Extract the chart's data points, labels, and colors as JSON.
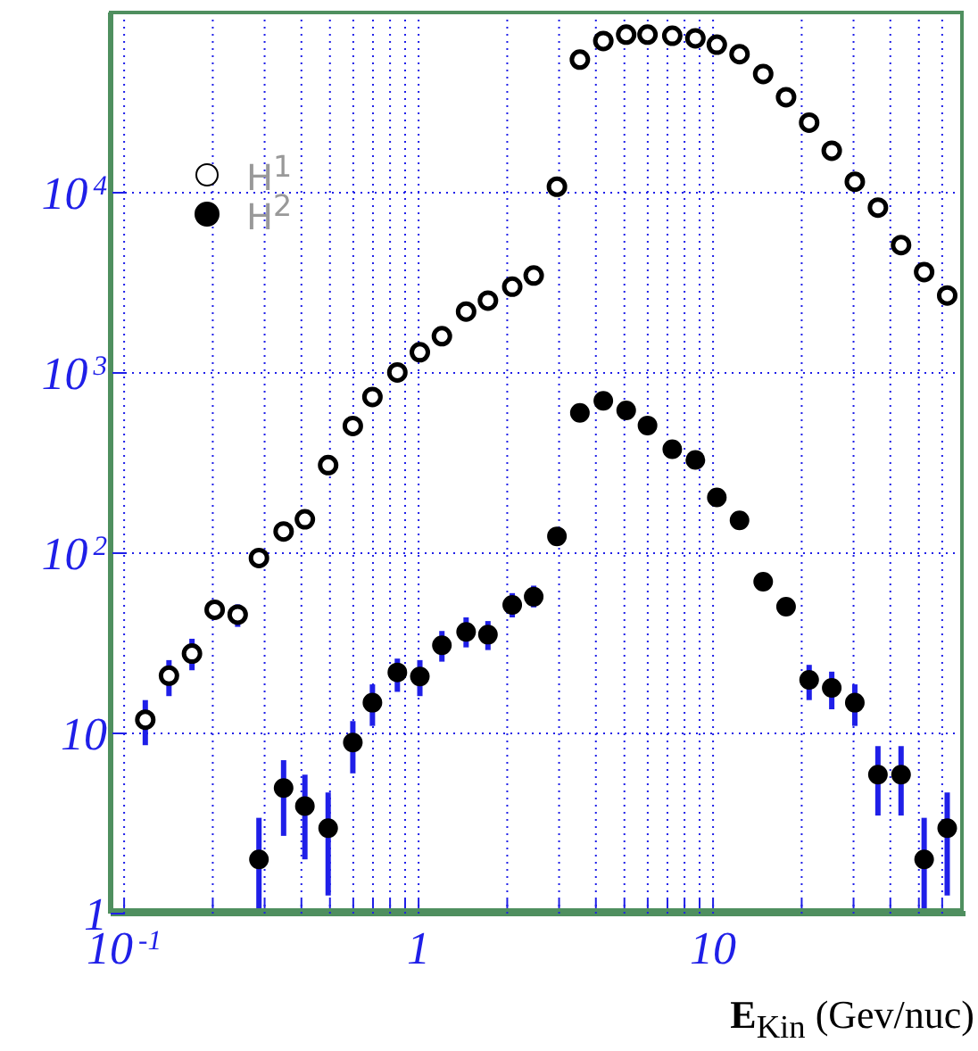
{
  "chart_data": {
    "type": "scatter",
    "xlabel": "E$_{Kin}$ (Gev/nuc)",
    "log": "xy",
    "grid": true,
    "legend": "top left",
    "marker": "circle",
    "xlim": [
      0.09,
      72
    ],
    "ylim": [
      1,
      100000
    ],
    "xticks": [
      {
        "value": 0.1,
        "label": "10$^{-1}$"
      },
      {
        "value": 0.2,
        "label": null
      },
      {
        "value": 0.3,
        "label": null
      },
      {
        "value": 0.4,
        "label": null
      },
      {
        "value": 0.5,
        "label": null
      },
      {
        "value": 0.6,
        "label": null
      },
      {
        "value": 0.7,
        "label": null
      },
      {
        "value": 0.8,
        "label": null
      },
      {
        "value": 0.9,
        "label": null
      },
      1,
      {
        "value": 2,
        "label": null
      },
      {
        "value": 3,
        "label": null
      },
      {
        "value": 4,
        "label": null
      },
      {
        "value": 5,
        "label": null
      },
      {
        "value": 6,
        "label": null
      },
      {
        "value": 7,
        "label": null
      },
      {
        "value": 8,
        "label": null
      },
      {
        "value": 9,
        "label": null
      },
      10,
      {
        "value": 20,
        "label": null
      },
      {
        "value": 30,
        "label": null
      },
      {
        "value": 40,
        "label": null
      },
      {
        "value": 50,
        "label": null
      },
      {
        "value": 60,
        "label": null
      }
    ],
    "yticks": [
      1,
      10,
      {
        "value": 100,
        "label": "10$^{2}$"
      },
      {
        "value": 1000,
        "label": "10$^{3}$"
      },
      {
        "value": 10000,
        "label": "10$^{4}$"
      }
    ],
    "series": [
      {
        "name": "H$^{1}$",
        "color": "#000000",
        "x": [
          0.118,
          0.142,
          0.17,
          0.203,
          0.243,
          0.287,
          0.348,
          0.411,
          0.493,
          0.598,
          0.697,
          0.847,
          1.01,
          1.2,
          1.45,
          1.72,
          2.08,
          2.46,
          2.95,
          3.53,
          4.24,
          5.07,
          5.99,
          7.27,
          8.71,
          10.3,
          12.3,
          14.8,
          17.7,
          21.2,
          25.3,
          30.3,
          36.3,
          43.5,
          52.1,
          62.4
        ],
        "values": [
          11.9,
          20.9,
          27.7,
          48.5,
          45.6,
          94,
          132,
          154,
          308,
          508,
          736,
          1007,
          1303,
          1600,
          2190,
          2520,
          3010,
          3470,
          10800,
          54800,
          69500,
          75400,
          75400,
          74300,
          71900,
          66300,
          58700,
          45600,
          33900,
          24500,
          17100,
          11500,
          8270,
          5120,
          3630,
          2690
        ],
        "errors": [
          [
            8.6,
            15.3
          ],
          [
            16.1,
            25.5
          ],
          [
            22.4,
            33.5
          ],
          null,
          [
            39,
            52
          ],
          null,
          null,
          null,
          null,
          null,
          null,
          null,
          null,
          null,
          null,
          null,
          null,
          null,
          null,
          null,
          null,
          null,
          null,
          null,
          null,
          null,
          null,
          null,
          null,
          null,
          null,
          null,
          null,
          null,
          null,
          null
        ]
      },
      {
        "name": "H$^{2}$",
        "color": "#000000",
        "x": [
          0.287,
          0.348,
          0.411,
          0.493,
          0.598,
          0.697,
          0.847,
          1.01,
          1.2,
          1.45,
          1.72,
          2.08,
          2.46,
          2.95,
          3.53,
          4.24,
          5.07,
          5.99,
          7.27,
          8.71,
          10.3,
          12.3,
          14.8,
          17.7,
          21.2,
          25.3,
          30.3,
          36.3,
          43.5,
          52.1,
          62.4
        ],
        "values": [
          2.0,
          4.97,
          3.95,
          2.98,
          8.9,
          14.8,
          21.8,
          20.7,
          30.8,
          36.6,
          35.3,
          51.6,
          57.3,
          124,
          600,
          700,
          620,
          511,
          377,
          329,
          204,
          152,
          69.5,
          50.5,
          19.8,
          17.9,
          14.8,
          5.9,
          5.9,
          2.0,
          2.98
        ],
        "errors": [
          [
            1,
            3.4
          ],
          [
            2.7,
            7.1
          ],
          [
            2,
            5.9
          ],
          [
            1.26,
            4.7
          ],
          [
            6,
            11.7
          ],
          [
            11,
            18.7
          ],
          [
            17,
            26
          ],
          [
            16.1,
            25.5
          ],
          [
            25,
            37
          ],
          [
            30,
            44
          ],
          [
            29,
            42
          ],
          [
            44,
            60
          ],
          [
            50,
            66
          ],
          null,
          null,
          null,
          null,
          null,
          null,
          null,
          null,
          null,
          null,
          null,
          [
            15.3,
            24
          ],
          [
            13.6,
            22
          ],
          [
            11,
            18.7
          ],
          [
            3.5,
            8.5
          ],
          [
            3.5,
            8.5
          ],
          [
            1,
            3.4
          ],
          [
            1.26,
            4.7
          ]
        ]
      }
    ]
  }
}
